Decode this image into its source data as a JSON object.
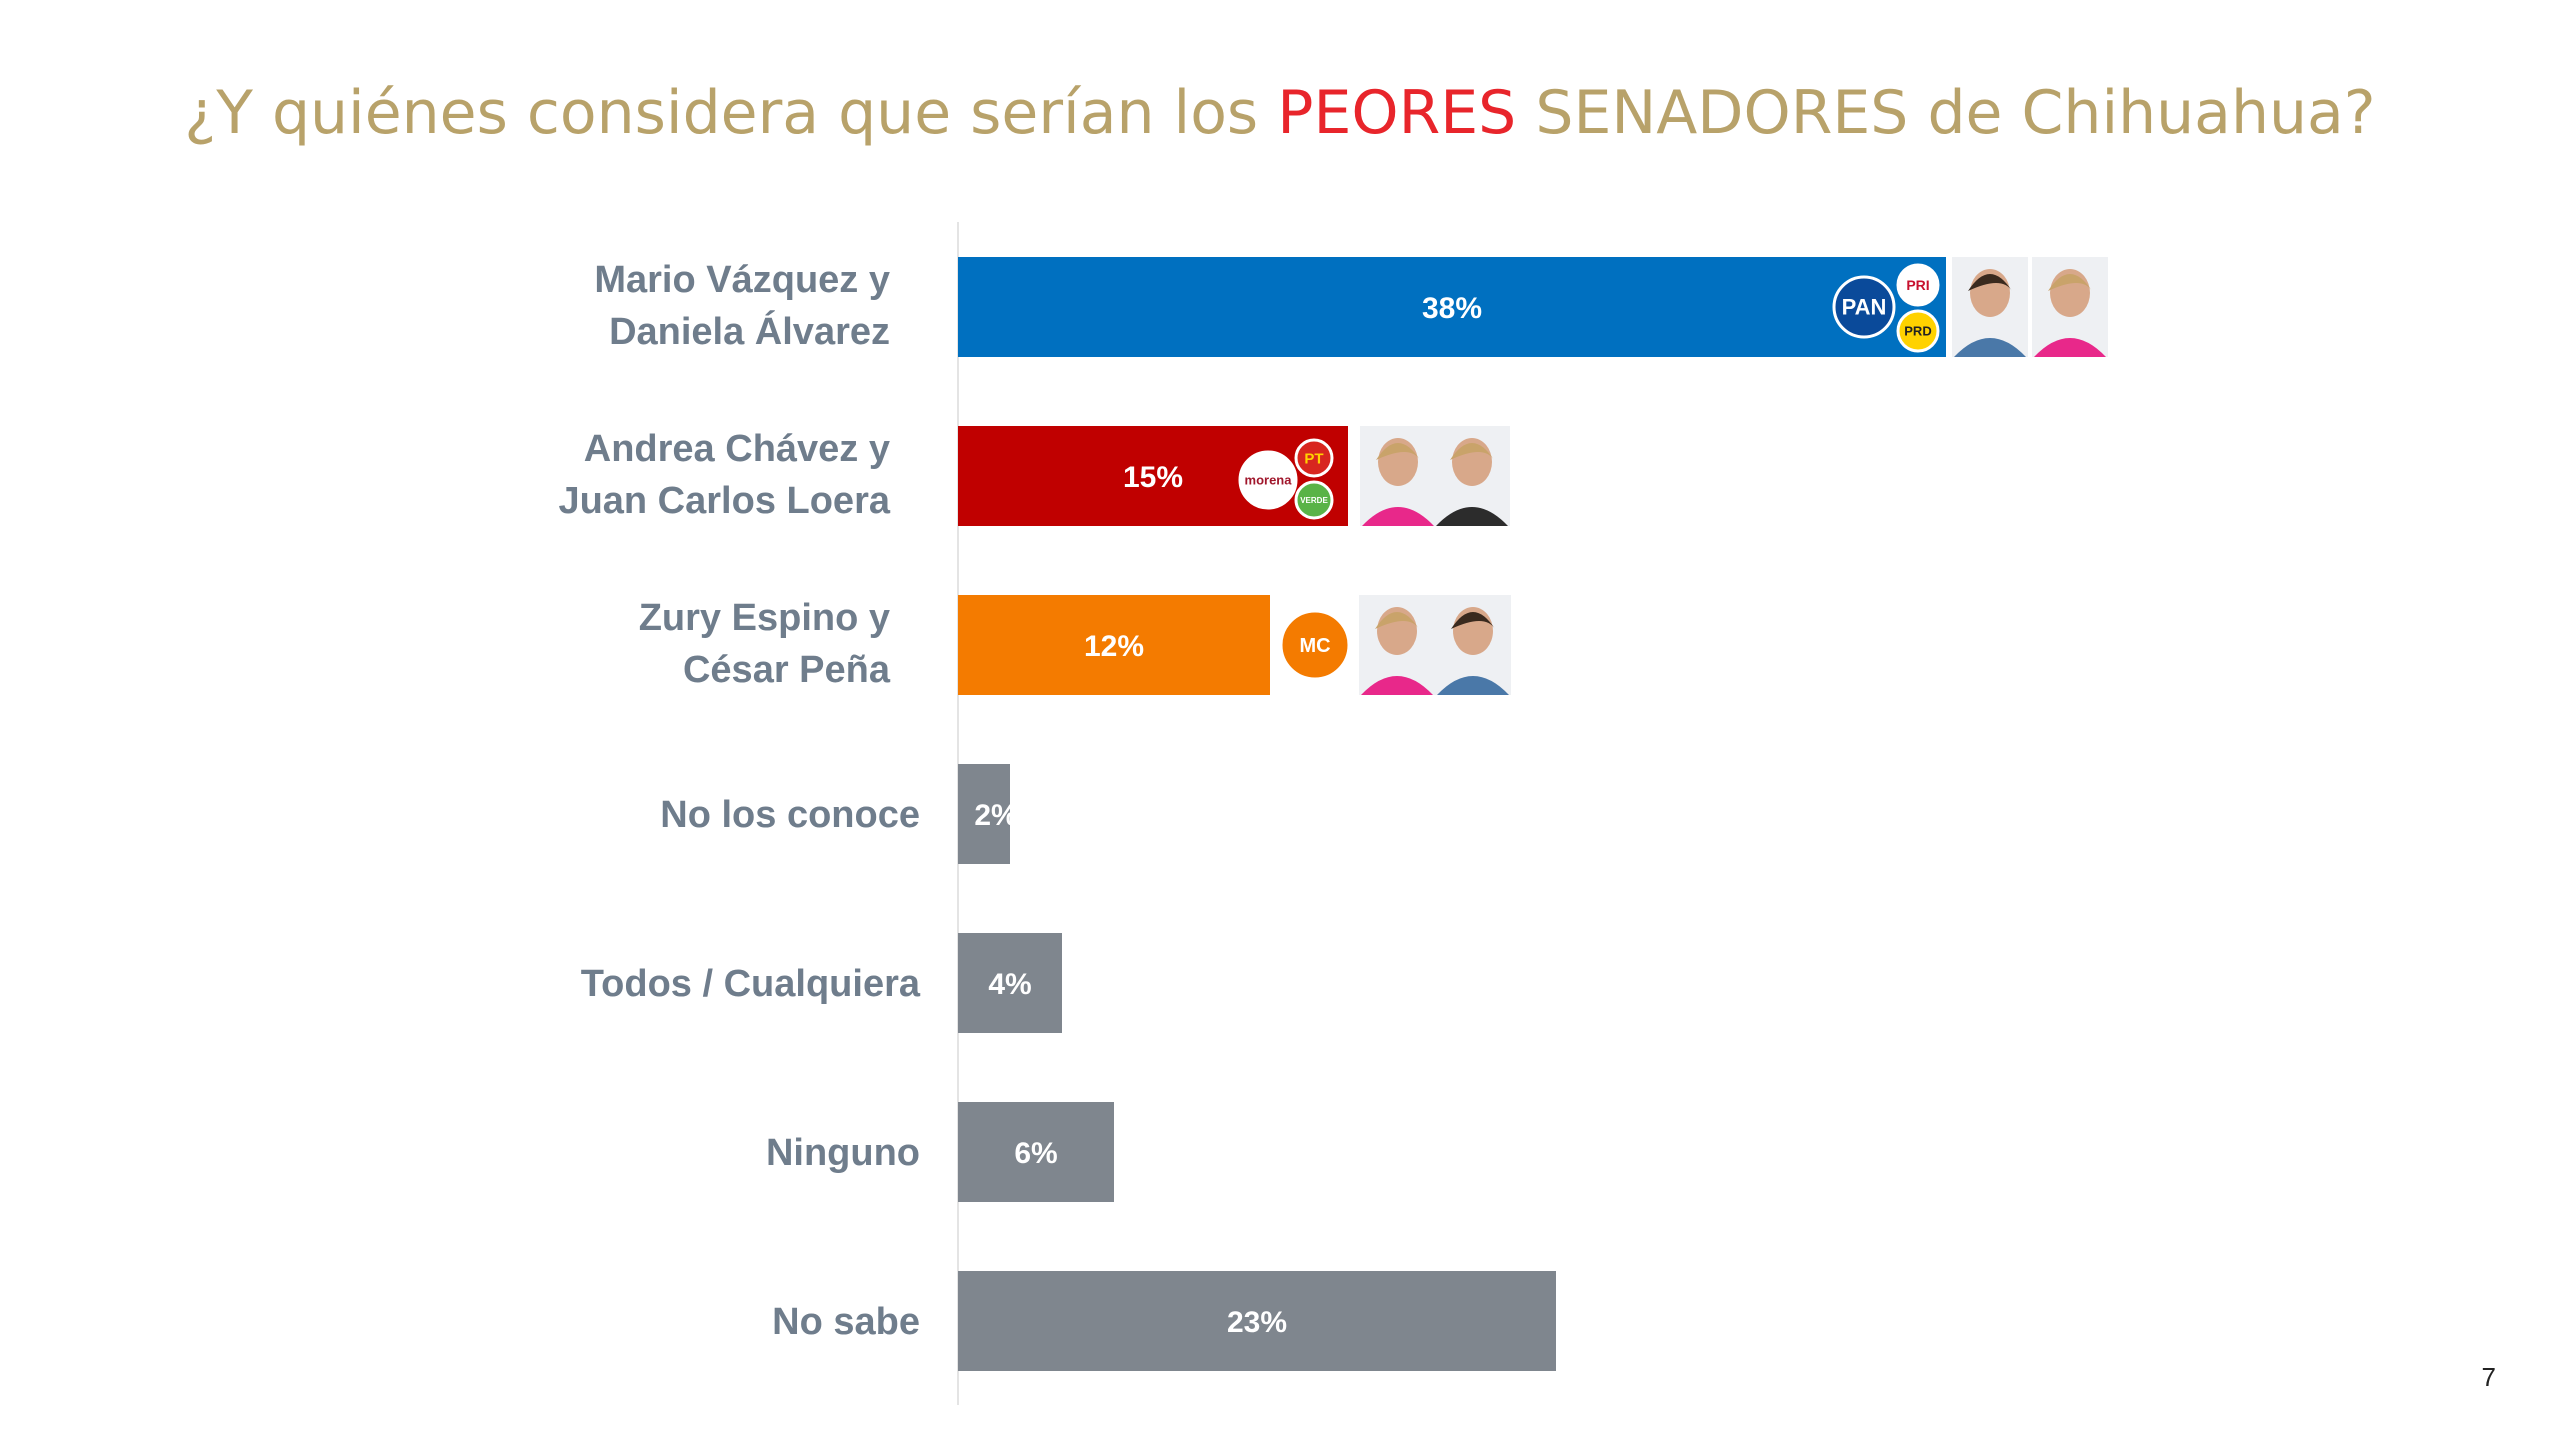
{
  "title": {
    "before": "¿Y quiénes considera que serían los ",
    "highlight": "PEORES",
    "after": " SENADORES de Chihuahua?"
  },
  "page_number": "7",
  "colors": {
    "title": "#b8a26a",
    "highlight": "#e8252b",
    "label": "#6f7d8c",
    "pan_coalition": "#0070c0",
    "morena_coalition": "#c00000",
    "mc": "#f47b00",
    "other": "#7f868e"
  },
  "chart_data": {
    "type": "bar",
    "orientation": "horizontal",
    "xlim": [
      0,
      45
    ],
    "grid": false,
    "categories": [
      [
        "Mario Vázquez y",
        "Daniela Álvarez"
      ],
      [
        "Andrea Chávez y",
        "Juan Carlos Loera"
      ],
      [
        "Zury Espino y",
        "César Peña"
      ],
      [
        "No los conoce"
      ],
      [
        "Todos / Cualquiera"
      ],
      [
        "Ninguno"
      ],
      [
        "No sabe"
      ]
    ],
    "values": [
      38,
      15,
      12,
      2,
      4,
      6,
      23
    ],
    "value_labels": [
      "38%",
      "15%",
      "12%",
      "2%",
      "4%",
      "6%",
      "23%"
    ],
    "bar_colors": [
      "#0070c0",
      "#c00000",
      "#f47b00",
      "#7f868e",
      "#7f868e",
      "#7f868e",
      "#7f868e"
    ],
    "party_logos": [
      [
        "PAN",
        "PRI",
        "PRD"
      ],
      [
        "morena",
        "PT",
        "VERDE"
      ],
      [
        "MOVIMIENTO CIUDADANO"
      ],
      [],
      [],
      [],
      []
    ],
    "candidate_photos": [
      2,
      2,
      2,
      0,
      0,
      0,
      0
    ]
  }
}
